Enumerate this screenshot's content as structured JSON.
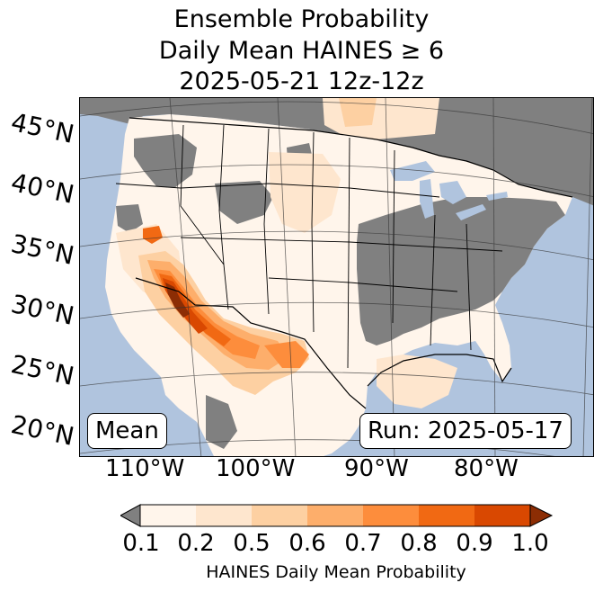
{
  "title": {
    "line1": "Ensemble Probability",
    "line2": "Daily Mean HAINES ≥ 6",
    "line3": "2025-05-21 12z-12z"
  },
  "map": {
    "ocean_color": "#b0c4de",
    "no_data_color": "#808080",
    "latitude_labels": [
      "45°N",
      "40°N",
      "35°N",
      "30°N",
      "25°N",
      "20°N"
    ],
    "longitude_labels": [
      "110°W",
      "100°W",
      "90°W",
      "80°W"
    ],
    "stat_label": "Mean",
    "run_label": "Run: 2025-05-17"
  },
  "colorbar": {
    "ticks": [
      "0.1",
      "0.2",
      "0.5",
      "0.6",
      "0.7",
      "0.8",
      "0.9",
      "1.0"
    ],
    "colors": [
      "#fff5eb",
      "#fee6ce",
      "#fdd0a2",
      "#fdae6b",
      "#fd8d3c",
      "#f16913",
      "#d94801",
      "#8c2d04"
    ],
    "under_color": "#808080",
    "label": "HAINES Daily Mean Probability"
  }
}
